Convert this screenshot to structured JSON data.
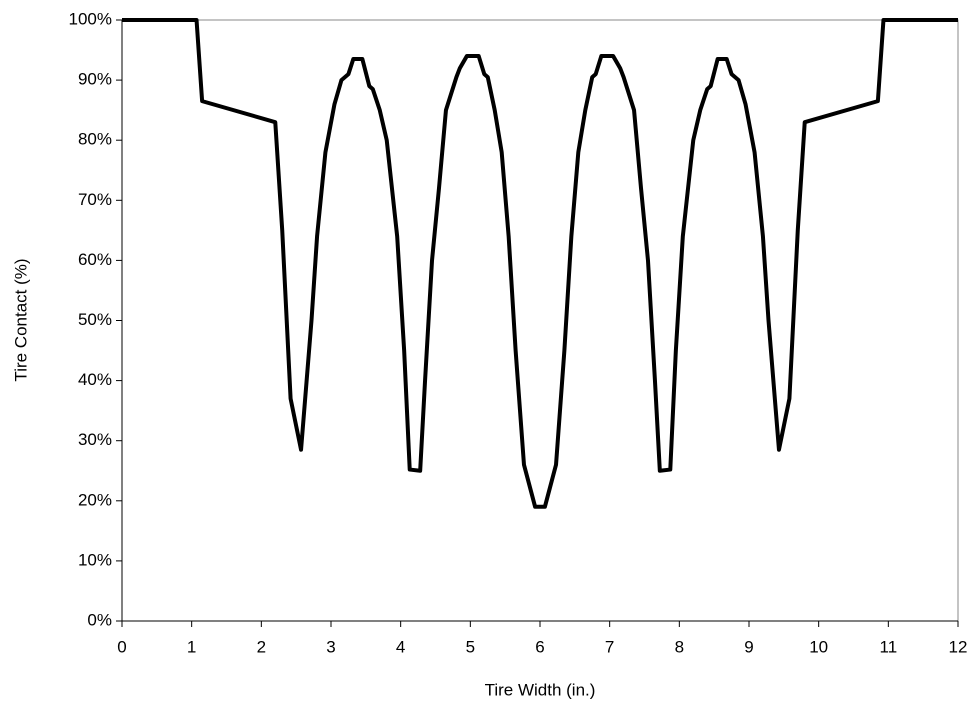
{
  "chart_data": {
    "type": "line",
    "xlabel": "Tire Width (in.)",
    "ylabel": "Tire Contact (%)",
    "color": "#000000",
    "x": [
      0,
      1.07,
      1.15,
      2.2,
      2.3,
      2.42,
      2.57,
      2.72,
      2.8,
      2.92,
      3.05,
      3.15,
      3.25,
      3.32,
      3.45,
      3.55,
      3.6,
      3.7,
      3.8,
      3.95,
      4.05,
      4.13,
      4.28,
      4.35,
      4.45,
      4.55,
      4.65,
      4.8,
      4.85,
      4.95,
      5.12,
      5.2,
      5.25,
      5.35,
      5.45,
      5.55,
      5.65,
      5.77,
      5.93,
      6.07,
      6.23,
      6.35,
      6.45,
      6.55,
      6.65,
      6.75,
      6.8,
      6.88,
      7.05,
      7.15,
      7.2,
      7.35,
      7.45,
      7.55,
      7.65,
      7.72,
      7.87,
      7.95,
      8.05,
      8.2,
      8.3,
      8.4,
      8.45,
      8.55,
      8.68,
      8.75,
      8.85,
      8.95,
      9.08,
      9.2,
      9.28,
      9.43,
      9.58,
      9.7,
      9.8,
      10.85,
      10.93,
      12
    ],
    "values": [
      100,
      100,
      86.5,
      83,
      65,
      37,
      28.5,
      50,
      64,
      78,
      86,
      90,
      91,
      93.5,
      93.5,
      89,
      88.5,
      85,
      80,
      64,
      45,
      25.2,
      25,
      40,
      60,
      72,
      85,
      90.5,
      92,
      94,
      94,
      91,
      90.5,
      85,
      78,
      64,
      45,
      26,
      19,
      19,
      26,
      45,
      64,
      78,
      85,
      90.5,
      91,
      94,
      94,
      92,
      90.5,
      85,
      72,
      60,
      40,
      25,
      25.2,
      45,
      64,
      80,
      85,
      88.5,
      89,
      93.5,
      93.5,
      91,
      90,
      86,
      78,
      64,
      50,
      28.5,
      37,
      65,
      83,
      86.5,
      100,
      100
    ],
    "xlim": [
      0,
      12
    ],
    "xticks": [
      0,
      1,
      2,
      3,
      4,
      5,
      6,
      7,
      8,
      9,
      10,
      11,
      12
    ],
    "ylim": [
      0,
      100
    ],
    "yticks": [
      {
        "value": 0,
        "label": "0%"
      },
      {
        "value": 10,
        "label": "10%"
      },
      {
        "value": 20,
        "label": "20%"
      },
      {
        "value": 30,
        "label": "30%"
      },
      {
        "value": 40,
        "label": "40%"
      },
      {
        "value": 50,
        "label": "50%"
      },
      {
        "value": 60,
        "label": "60%"
      },
      {
        "value": 70,
        "label": "70%"
      },
      {
        "value": 80,
        "label": "80%"
      },
      {
        "value": 90,
        "label": "90%"
      },
      {
        "value": 100,
        "label": "100%"
      }
    ],
    "grid": false
  }
}
